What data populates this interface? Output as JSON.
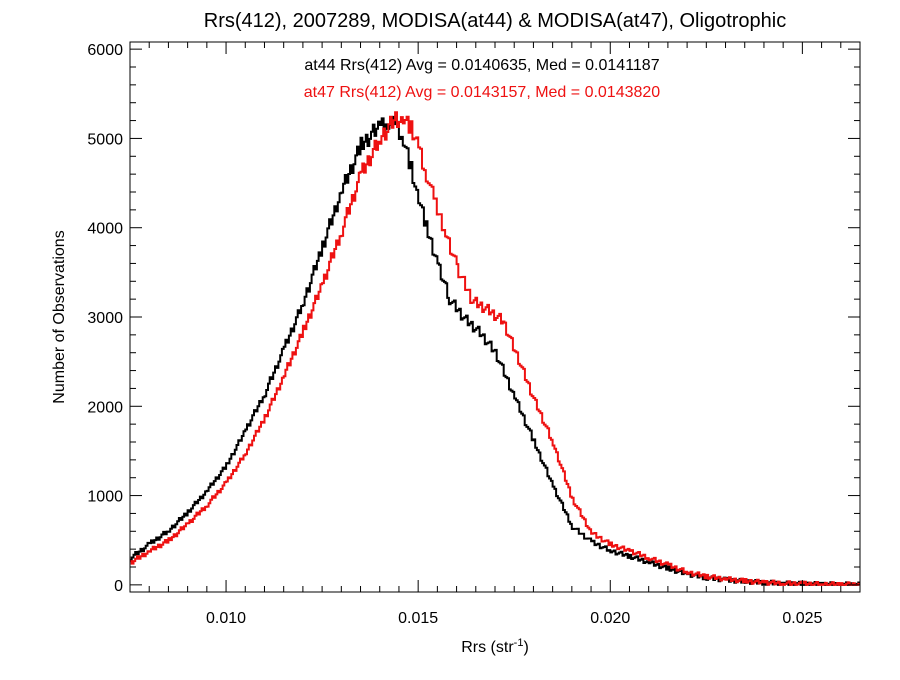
{
  "chart_data": {
    "type": "line",
    "title": "Rrs(412), 2007289, MODISA(at44) & MODISA(at47), Oligotrophic",
    "xlabel": "Rrs (str",
    "xlabel_sup": "-1",
    "xlabel_end": ")",
    "ylabel": "Number of Observations",
    "xlim": [
      0.0075,
      0.0265
    ],
    "ylim": [
      -80,
      6080
    ],
    "x_ticks": [
      0.01,
      0.015,
      0.02,
      0.025
    ],
    "x_tick_labels": [
      "0.010",
      "0.015",
      "0.020",
      "0.025"
    ],
    "y_ticks": [
      0,
      1000,
      2000,
      3000,
      4000,
      5000,
      6000
    ],
    "y_tick_labels": [
      "0",
      "1000",
      "2000",
      "3000",
      "4000",
      "5000",
      "6000"
    ],
    "grid": false,
    "series": [
      {
        "name": "at44",
        "color": "#000000",
        "annotation": "at44 Rrs(412) Avg = 0.0140635, Med = 0.0141187",
        "x": [
          0.0075,
          0.008,
          0.0085,
          0.009,
          0.0095,
          0.01,
          0.0105,
          0.011,
          0.0115,
          0.012,
          0.0125,
          0.013,
          0.0135,
          0.014,
          0.0142,
          0.0144,
          0.0146,
          0.0148,
          0.015,
          0.0152,
          0.0155,
          0.0158,
          0.0162,
          0.0166,
          0.017,
          0.0175,
          0.018,
          0.0185,
          0.019,
          0.0195,
          0.02,
          0.0205,
          0.021,
          0.0215,
          0.022,
          0.0225,
          0.023,
          0.0235,
          0.024,
          0.0245,
          0.025,
          0.0255,
          0.026,
          0.0265
        ],
        "y": [
          300,
          460,
          610,
          820,
          1060,
          1340,
          1740,
          2150,
          2650,
          3170,
          3800,
          4420,
          4920,
          5150,
          5200,
          5130,
          4980,
          4680,
          4300,
          4000,
          3600,
          3200,
          2980,
          2820,
          2600,
          2100,
          1600,
          1100,
          650,
          480,
          380,
          320,
          250,
          180,
          120,
          80,
          55,
          38,
          25,
          15,
          10,
          6,
          4,
          2
        ]
      },
      {
        "name": "at47",
        "color": "#ee1111",
        "annotation": "at47 Rrs(412) Avg = 0.0143157, Med = 0.0143820",
        "x": [
          0.0075,
          0.008,
          0.0085,
          0.009,
          0.0095,
          0.01,
          0.0105,
          0.011,
          0.0115,
          0.012,
          0.0125,
          0.013,
          0.0135,
          0.014,
          0.0144,
          0.0146,
          0.0148,
          0.015,
          0.0152,
          0.0154,
          0.0157,
          0.016,
          0.0164,
          0.0168,
          0.0172,
          0.0176,
          0.018,
          0.0185,
          0.019,
          0.0195,
          0.02,
          0.0205,
          0.021,
          0.0215,
          0.022,
          0.0225,
          0.023,
          0.0235,
          0.024,
          0.0245,
          0.025,
          0.0255,
          0.026,
          0.0265
        ],
        "y": [
          250,
          380,
          500,
          690,
          900,
          1150,
          1480,
          1880,
          2350,
          2850,
          3380,
          3980,
          4600,
          5000,
          5230,
          5200,
          5100,
          4900,
          4600,
          4300,
          3950,
          3550,
          3180,
          3080,
          2950,
          2520,
          2080,
          1580,
          960,
          580,
          450,
          380,
          300,
          220,
          140,
          95,
          65,
          42,
          28,
          18,
          11,
          7,
          4,
          2
        ]
      }
    ]
  }
}
